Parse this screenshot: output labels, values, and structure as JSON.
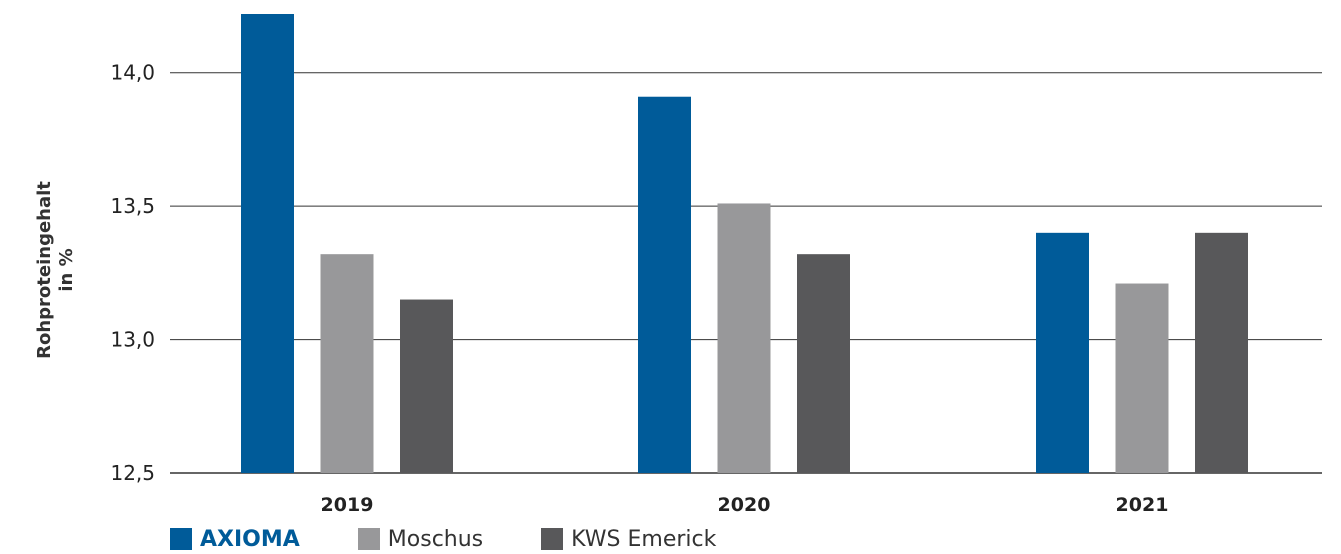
{
  "chart_data": {
    "type": "bar",
    "categories": [
      "2019",
      "2020",
      "2021"
    ],
    "series": [
      {
        "name": "AXIOMA",
        "values": [
          14.22,
          13.91,
          13.4
        ],
        "color": "#005b99"
      },
      {
        "name": "Moschus",
        "values": [
          13.32,
          13.51,
          13.21
        ],
        "color": "#98989a"
      },
      {
        "name": "KWS Emerick",
        "values": [
          13.15,
          13.32,
          13.4
        ],
        "color": "#58585a"
      }
    ],
    "ylabel": [
      "Rohproteingehalt",
      "in %"
    ],
    "ylim": [
      12.5,
      14.22
    ],
    "yticks": [
      12.5,
      13.0,
      13.5,
      14.0
    ],
    "ytick_labels": [
      "12,5",
      "13,0",
      "13,5",
      "14,0"
    ],
    "grid": true,
    "legend_position": "bottom-left"
  }
}
